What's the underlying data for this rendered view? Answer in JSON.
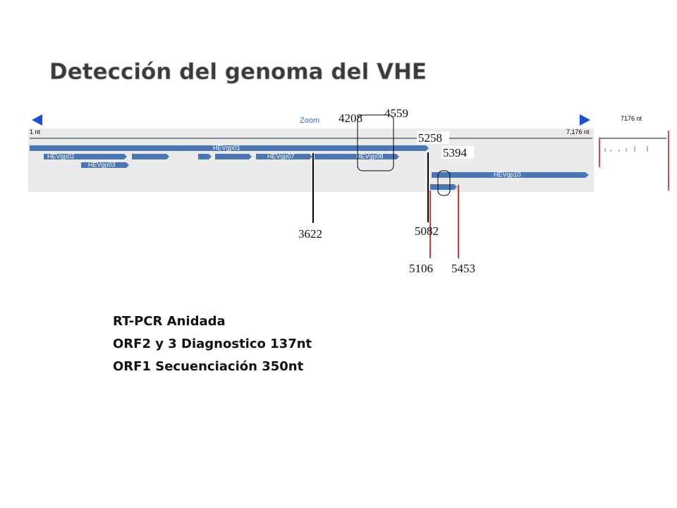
{
  "header": {
    "title": "Detección del genoma del VHE"
  },
  "viewer": {
    "zoom": "Zoom",
    "start_label": "1 nt",
    "end_label": "7,176 nt",
    "overview_label": "7176 nt"
  },
  "genes": [
    "HEVgp01",
    "HEVgp02",
    "HEVgp03",
    "HEVgp07",
    "HEVgp08",
    "HEVgp10"
  ],
  "positions": [
    4208,
    4559,
    5258,
    5394,
    3622,
    5082,
    5106,
    5453
  ],
  "notes": [
    "RT-PCR Anidada",
    "ORF2 y 3 Diagnostico 137nt",
    "ORF1 Secuenciación 350nt"
  ]
}
